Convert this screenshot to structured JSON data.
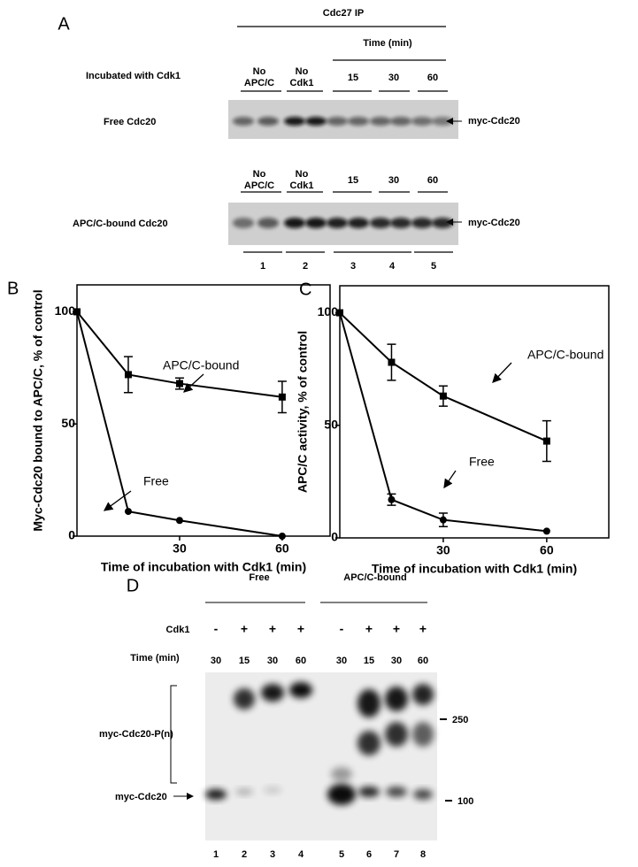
{
  "panel_a": {
    "letter": "A",
    "ip_label": "Cdc27 IP",
    "time_label": "Time (min)",
    "row_label": "Incubated with Cdk1",
    "blots": [
      {
        "conditions": [
          {
            "lines": [
              "No",
              "APC/C"
            ]
          },
          {
            "lines": [
              "No",
              "Cdk1"
            ]
          },
          {
            "lines": [
              "15"
            ]
          },
          {
            "lines": [
              "30"
            ]
          },
          {
            "lines": [
              "60"
            ]
          }
        ],
        "label": "Free Cdc20",
        "band_label": "myc-Cdc20"
      },
      {
        "conditions": [
          {
            "lines": [
              "No",
              "APC/C"
            ]
          },
          {
            "lines": [
              "No",
              "Cdk1"
            ]
          },
          {
            "lines": [
              "15"
            ]
          },
          {
            "lines": [
              "30"
            ]
          },
          {
            "lines": [
              "60"
            ]
          }
        ],
        "label": "APC/C-bound Cdc20",
        "band_label": "myc-Cdc20"
      }
    ],
    "lanes": [
      "1",
      "2",
      "3",
      "4",
      "5"
    ]
  },
  "chart_data": [
    {
      "type": "line",
      "panel": "B",
      "ylabel": "Myc-Cdc20 bound to APC/C, % of control",
      "xlabel": "Time of incubation with Cdk1 (min)",
      "x": [
        0,
        15,
        30,
        60
      ],
      "xlim": [
        0,
        74
      ],
      "xticks": [
        30,
        60
      ],
      "ylim": [
        0,
        112
      ],
      "yticks": [
        0,
        50,
        100
      ],
      "series": [
        {
          "name": "APC/C-bound",
          "color": "#000000",
          "marker": "square",
          "values": [
            100,
            72,
            68,
            62
          ],
          "errors": [
            null,
            8,
            2.5,
            7
          ]
        },
        {
          "name": "Free",
          "color": "#000000",
          "marker": "circle",
          "values": [
            100,
            11,
            7,
            0
          ]
        }
      ]
    },
    {
      "type": "line",
      "panel": "C",
      "ylabel": "APC/C activity, % of control",
      "xlabel": "Time of incubation with Cdk1 (min)",
      "x": [
        0,
        15,
        30,
        60
      ],
      "xlim": [
        0,
        78
      ],
      "xticks": [
        30,
        60
      ],
      "ylim": [
        0,
        112
      ],
      "yticks": [
        0,
        50,
        100
      ],
      "series": [
        {
          "name": "APC/C-bound",
          "color": "#000000",
          "marker": "square",
          "values": [
            100,
            78,
            63,
            43
          ],
          "errors": [
            null,
            8,
            4.5,
            9
          ]
        },
        {
          "name": "Free",
          "color": "#000000",
          "marker": "circle",
          "values": [
            100,
            17,
            8,
            3
          ],
          "errors": [
            null,
            2.5,
            3,
            null
          ]
        }
      ]
    }
  ],
  "panel_d": {
    "letter": "D",
    "groups": [
      "Free",
      "APC/C-bound"
    ],
    "cdk1_label": "Cdk1",
    "cdk1": [
      "-",
      "+",
      "+",
      "+",
      "-",
      "+",
      "+",
      "+"
    ],
    "time_label": "Time (min)",
    "times": [
      "30",
      "15",
      "30",
      "60",
      "30",
      "15",
      "30",
      "60"
    ],
    "bracket_label": "myc-Cdc20-P(n)",
    "band_label": "myc-Cdc20",
    "markers": [
      "250",
      "100"
    ],
    "lanes": [
      "1",
      "2",
      "3",
      "4",
      "5",
      "6",
      "7",
      "8"
    ]
  }
}
